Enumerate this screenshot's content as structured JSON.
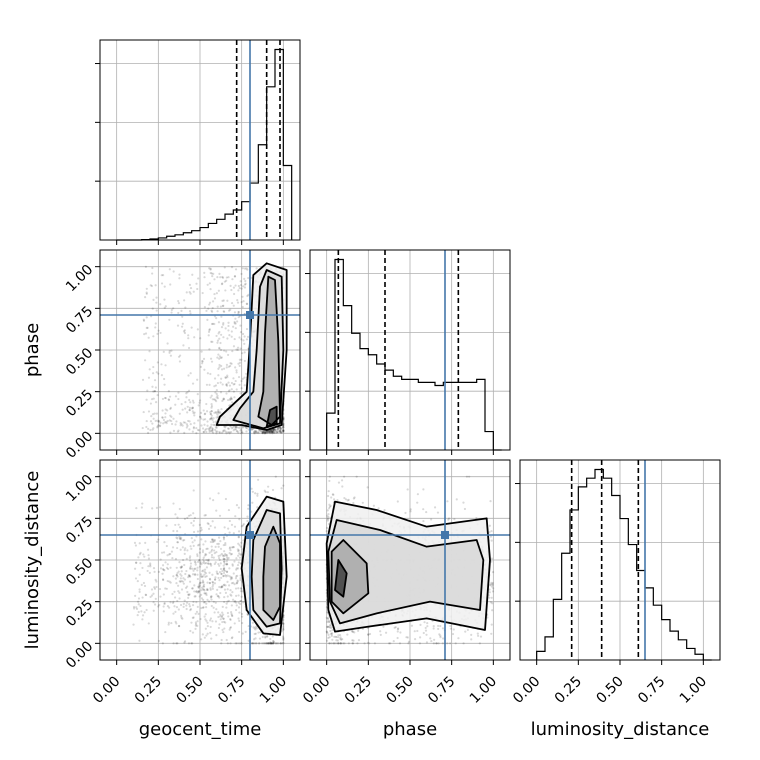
{
  "chart_data": {
    "type": "corner",
    "parameters": [
      "geocent_time",
      "phase",
      "luminosity_distance"
    ],
    "axis_range": [
      -0.1,
      1.1
    ],
    "tick_labels": [
      "0.00",
      "0.25",
      "0.50",
      "0.75",
      "1.00"
    ],
    "grid": true,
    "colors": {
      "truth": "#4477aa",
      "hist": "#000000",
      "quantile": "#000000",
      "grid": "#b0b0b0"
    },
    "truths": {
      "geocent_time": 0.8,
      "phase": 0.71,
      "luminosity_distance": 0.65
    },
    "quantiles": {
      "geocent_time": [
        0.72,
        0.9,
        0.98
      ],
      "phase": [
        0.07,
        0.35,
        0.79
      ],
      "luminosity_distance": [
        0.21,
        0.39,
        0.61
      ]
    },
    "histograms": {
      "geocent_time": {
        "bin_edges": [
          0.0,
          0.05,
          0.1,
          0.15,
          0.2,
          0.25,
          0.3,
          0.35,
          0.4,
          0.45,
          0.5,
          0.55,
          0.6,
          0.65,
          0.7,
          0.75,
          0.8,
          0.85,
          0.9,
          0.95,
          1.0,
          1.05
        ],
        "counts": [
          0.0,
          0.0,
          0.0,
          0.002,
          0.005,
          0.01,
          0.018,
          0.025,
          0.035,
          0.045,
          0.06,
          0.08,
          0.1,
          0.125,
          0.145,
          0.185,
          0.275,
          0.46,
          0.74,
          0.92,
          0.36
        ]
      },
      "phase": {
        "bin_edges": [
          0.0,
          0.05,
          0.1,
          0.15,
          0.2,
          0.25,
          0.3,
          0.35,
          0.4,
          0.45,
          0.5,
          0.55,
          0.6,
          0.65,
          0.7,
          0.75,
          0.8,
          0.85,
          0.9,
          0.95,
          1.0,
          1.05
        ],
        "counts": [
          0.12,
          0.62,
          0.47,
          0.38,
          0.33,
          0.31,
          0.28,
          0.26,
          0.24,
          0.23,
          0.23,
          0.22,
          0.22,
          0.21,
          0.22,
          0.22,
          0.22,
          0.22,
          0.23,
          0.06,
          0.0
        ]
      },
      "luminosity_distance": {
        "bin_edges": [
          0.0,
          0.05,
          0.1,
          0.15,
          0.2,
          0.25,
          0.3,
          0.35,
          0.4,
          0.45,
          0.5,
          0.55,
          0.6,
          0.65,
          0.7,
          0.75,
          0.8,
          0.85,
          0.9,
          0.95,
          1.0,
          1.05
        ],
        "counts": [
          0.03,
          0.08,
          0.21,
          0.37,
          0.52,
          0.6,
          0.63,
          0.66,
          0.63,
          0.57,
          0.49,
          0.4,
          0.31,
          0.25,
          0.19,
          0.14,
          0.1,
          0.07,
          0.04,
          0.02,
          0.0
        ]
      }
    }
  }
}
